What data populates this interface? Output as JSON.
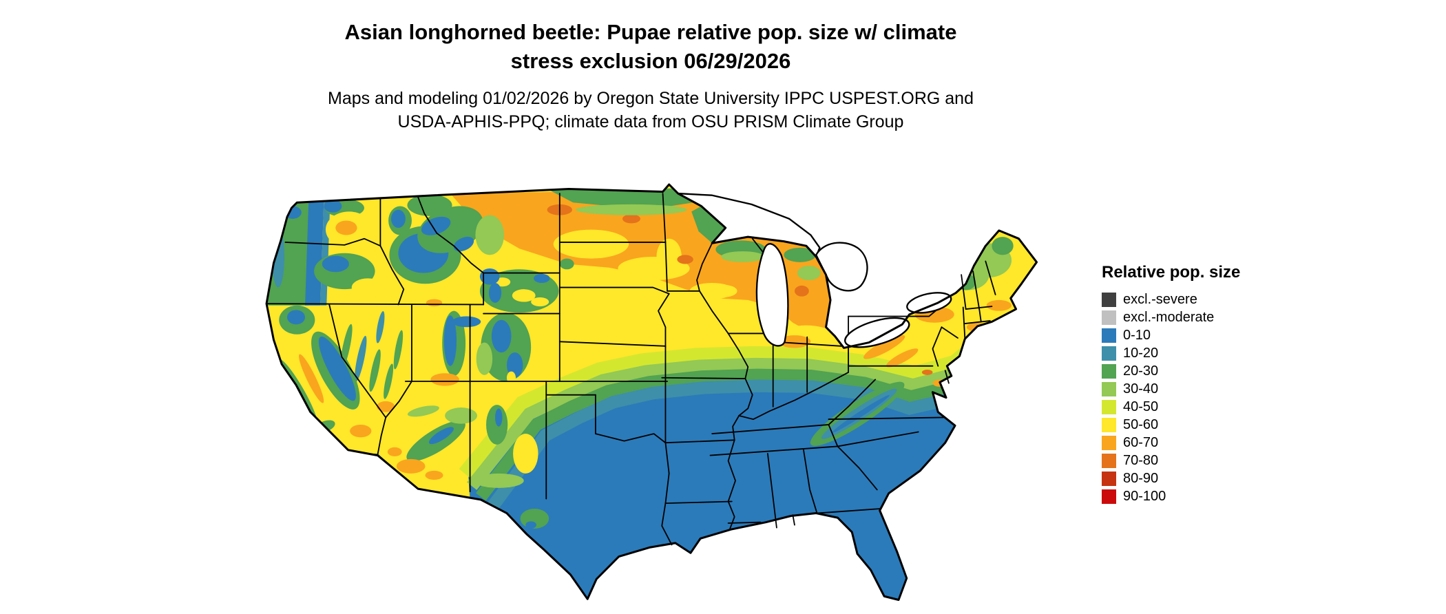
{
  "header": {
    "title_line1": "Asian longhorned beetle: Pupae relative pop. size w/ climate",
    "title_line2": "stress exclusion 06/29/2026",
    "subtitle_line1": "Maps and modeling 01/02/2026 by Oregon State University IPPC USPEST.ORG and",
    "subtitle_line2": "USDA-APHIS-PPQ; climate data from OSU PRISM Climate Group"
  },
  "legend": {
    "title": "Relative pop. size",
    "items": [
      {
        "label": "excl.-severe",
        "color": "#404040"
      },
      {
        "label": "excl.-moderate",
        "color": "#c0c0c0"
      },
      {
        "label": "0-10",
        "color": "#2b7bba"
      },
      {
        "label": "10-20",
        "color": "#3e8fa9"
      },
      {
        "label": "20-30",
        "color": "#52a352"
      },
      {
        "label": "30-40",
        "color": "#93c954"
      },
      {
        "label": "40-50",
        "color": "#d4e72f"
      },
      {
        "label": "50-60",
        "color": "#ffe72a"
      },
      {
        "label": "60-70",
        "color": "#f9a51e"
      },
      {
        "label": "70-80",
        "color": "#e4731b"
      },
      {
        "label": "80-90",
        "color": "#c63310"
      },
      {
        "label": "90-100",
        "color": "#cb0b0b"
      }
    ]
  },
  "map": {
    "region": "Contiguous United States",
    "description": "Gridded raster of relative population size classes over the contiguous US with state boundaries and Great Lakes; low (blue) values across the South, high (orange/yellow) values across the northern plains and Great Lakes, mountain terrain patchwork in the West."
  }
}
